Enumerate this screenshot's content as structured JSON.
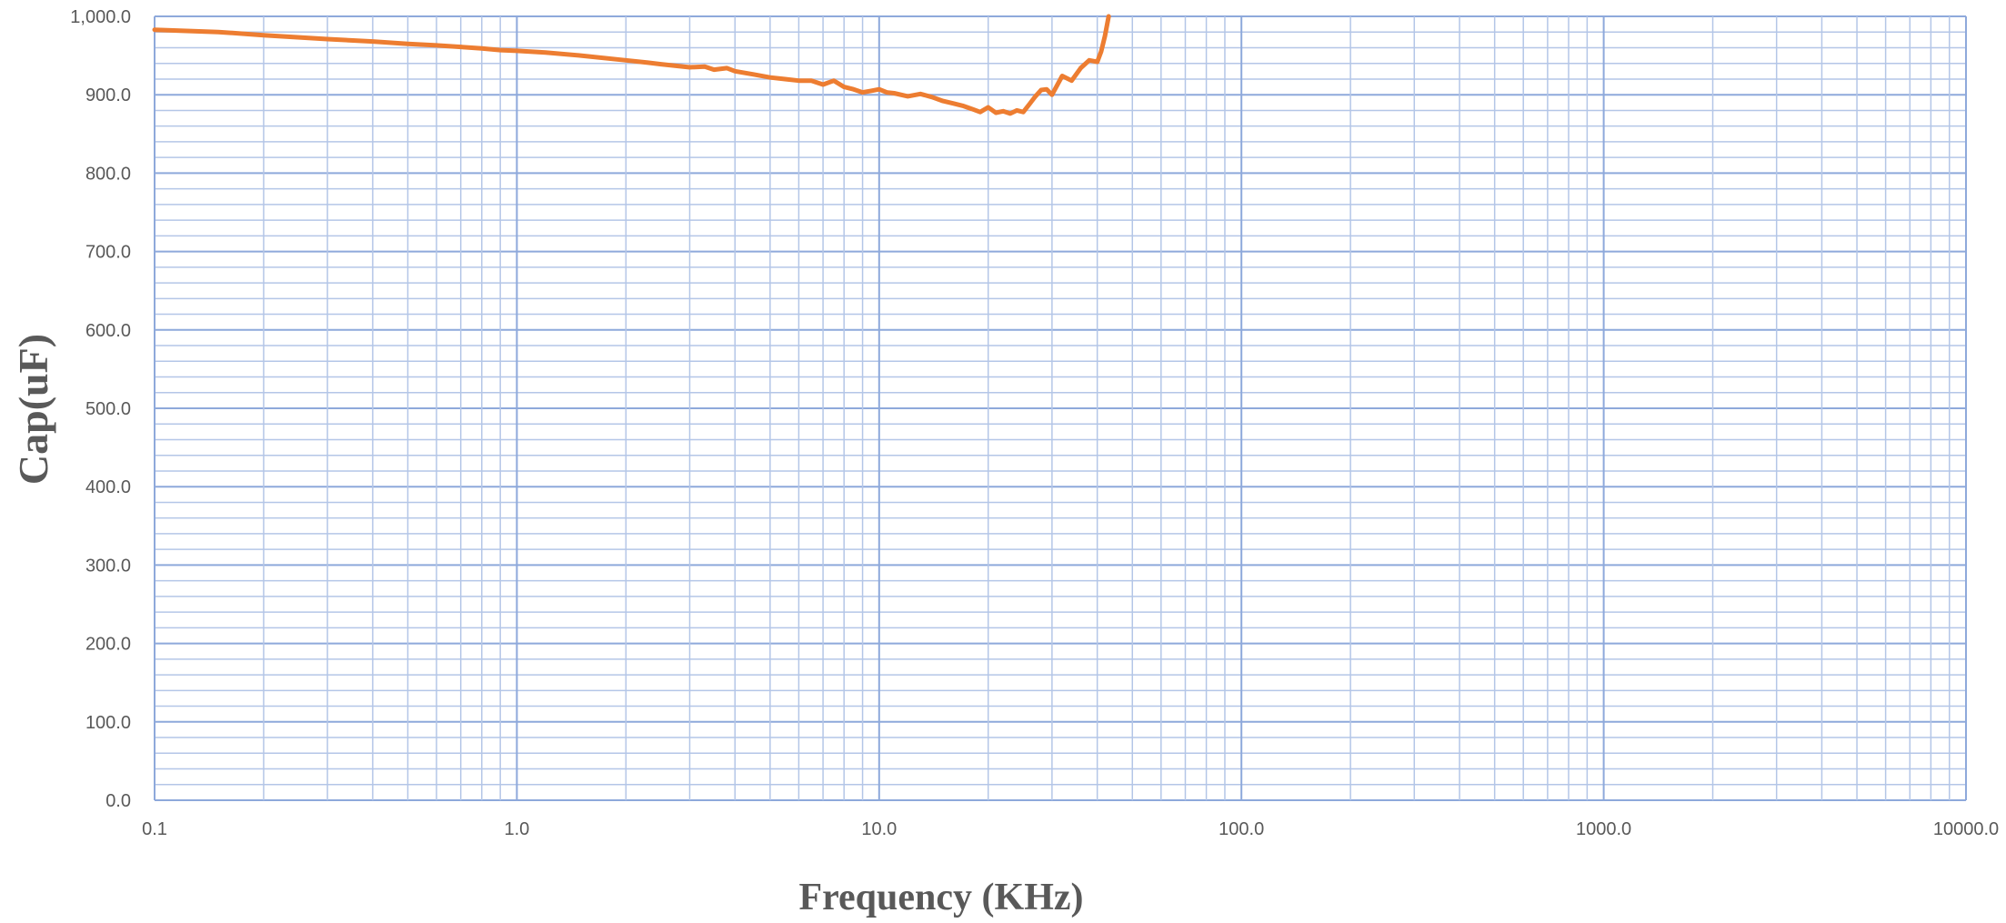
{
  "chart_data": {
    "type": "line",
    "title": "",
    "xlabel": "Frequency (KHz)",
    "ylabel": "Cap(uF)",
    "x_scale": "log",
    "xlim": [
      0.1,
      10000
    ],
    "ylim": [
      0,
      1000
    ],
    "grid": true,
    "legend": "none",
    "x_tick_labels": [
      "0.1",
      "1.0",
      "10.0",
      "100.0",
      "1000.0",
      "10000.0"
    ],
    "y_tick_labels": [
      "0.0",
      "100.0",
      "200.0",
      "300.0",
      "400.0",
      "500.0",
      "600.0",
      "700.0",
      "800.0",
      "900.0",
      "1,000.0"
    ],
    "series": [
      {
        "color": "#ED7D31",
        "x": [
          0.1,
          0.15,
          0.2,
          0.3,
          0.4,
          0.5,
          0.6,
          0.7,
          0.8,
          0.9,
          1.0,
          1.2,
          1.5,
          2.0,
          2.3,
          2.5,
          3.0,
          3.3,
          3.5,
          3.8,
          4.0,
          4.5,
          5.0,
          5.5,
          6.0,
          6.5,
          7.0,
          7.5,
          8.0,
          8.5,
          9.0,
          9.5,
          10.0,
          10.5,
          11.0,
          12.0,
          13.0,
          14.0,
          15.0,
          16.0,
          17.0,
          18.0,
          19.0,
          20.0,
          21.0,
          22.0,
          23.0,
          24.0,
          25.0,
          26.0,
          27.0,
          28.0,
          29.0,
          30.0,
          32.0,
          34.0,
          36.0,
          38.0,
          40.0,
          41.0,
          42.0,
          43.0
        ],
        "y": [
          983,
          980,
          976,
          971,
          968,
          965,
          963,
          961,
          959,
          957,
          956,
          954,
          950,
          944,
          941,
          939,
          935,
          936,
          932,
          934,
          930,
          926,
          922,
          920,
          918,
          918,
          913,
          918,
          910,
          907,
          903,
          905,
          907,
          903,
          902,
          898,
          901,
          897,
          892,
          889,
          886,
          882,
          878,
          884,
          877,
          879,
          876,
          880,
          878,
          888,
          898,
          906,
          907,
          900,
          924,
          918,
          934,
          944,
          942,
          955,
          975,
          1000
        ]
      }
    ]
  }
}
